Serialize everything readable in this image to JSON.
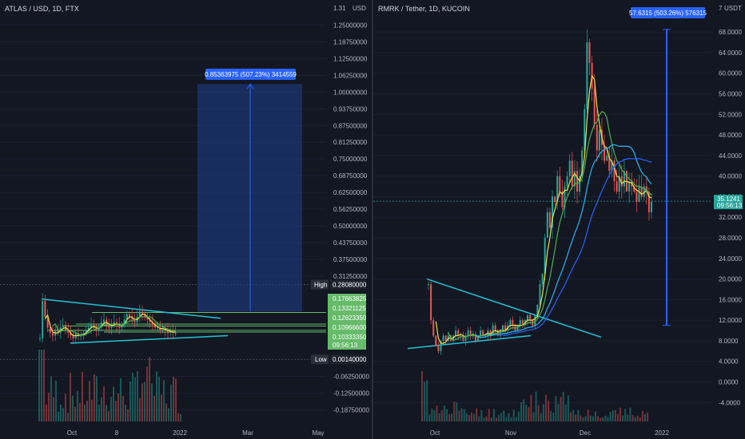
{
  "left": {
    "symbol": "ATLAS / USD, 1D, FTX",
    "currency": "USD",
    "y_ticks": [
      "1.31",
      "1.25000000",
      "1.18750000",
      "1.12500000",
      "1.06250000",
      "1.00000000",
      "0.93750000",
      "0.87500000",
      "0.81250000",
      "0.75000000",
      "0.68750000",
      "0.62500000",
      "0.56250000",
      "0.50000000",
      "0.43750000",
      "0.37500000",
      "0.31250000",
      "-0.06250000",
      "-0.12500000",
      "-0.18750000"
    ],
    "x_ticks": [
      "Oct",
      "8",
      "2022",
      "Mar",
      "May"
    ],
    "measure_label": "0.85363975 (507.23%) 3414559",
    "high_tag": "High",
    "high_value": "0.28080000",
    "low_tag": "Low",
    "low_value": "0.00140000",
    "price_labels": [
      "0.17663825",
      "0.13321125",
      "0.12623350",
      "0.10966600",
      "0.10333350"
    ],
    "countdown": "09:56:13"
  },
  "right": {
    "symbol": "RMRK / Tether, 1D, KUCOIN",
    "currency": "USDT",
    "currency_prefix": "7",
    "y_ticks": [
      "68.0000",
      "64.0000",
      "60.0000",
      "56.0000",
      "52.0000",
      "48.0000",
      "44.0000",
      "40.0000",
      "36.0000",
      "32.0000",
      "28.0000",
      "24.0000",
      "20.0000",
      "16.0000",
      "12.0000",
      "8.0000",
      "4.0000",
      "0.0000",
      "-4.0000"
    ],
    "x_ticks": [
      "Oct",
      "Nov",
      "Dec",
      "2022"
    ],
    "measure_label": "57.6315 (503.26%) 576315",
    "last_price": "35.1241",
    "countdown": "09:56:13"
  },
  "colors": {
    "background": "#131722",
    "up": "#26a69a",
    "down": "#ef5350",
    "measure_fill": "#1e3f8c",
    "measure_tag": "#2962ff",
    "trendline": "#22c3d6",
    "ma_green": "#4caf50",
    "ma_yellow": "#e8e04a",
    "ma_cyan": "#29b6f6",
    "ma_blue": "#2962ff",
    "price_green": "#66bb6a",
    "last_price_tag": "#26a69a"
  },
  "chart_data": [
    {
      "type": "candlestick",
      "title": "ATLAS / USD, 1D, FTX",
      "ylim": [
        -0.21,
        1.31
      ],
      "x_labels": [
        "Oct",
        "8",
        "2022",
        "Mar",
        "May"
      ],
      "high": 0.2808,
      "low": 0.0014,
      "measure": {
        "change": 0.85363975,
        "percent": 507.23
      },
      "levels": [
        0.17663825,
        0.13321125,
        0.1262335,
        0.109666,
        0.1033335
      ],
      "close_series": [
        0.08,
        0.22,
        0.16,
        0.12,
        0.1,
        0.09,
        0.11,
        0.1,
        0.12,
        0.13,
        0.11,
        0.1,
        0.09,
        0.08,
        0.1,
        0.09,
        0.09,
        0.1,
        0.11,
        0.12,
        0.13,
        0.12,
        0.11,
        0.12,
        0.14,
        0.15,
        0.13,
        0.12,
        0.13,
        0.14,
        0.13,
        0.12,
        0.13,
        0.15,
        0.17,
        0.16,
        0.15,
        0.14,
        0.16,
        0.18,
        0.17,
        0.16,
        0.15,
        0.14,
        0.13,
        0.12,
        0.12,
        0.11,
        0.12,
        0.11,
        0.1,
        0.11,
        0.1,
        0.1
      ]
    },
    {
      "type": "candlestick",
      "title": "RMRK / Tether, 1D, KUCOIN",
      "ylim": [
        -6,
        72
      ],
      "x_labels": [
        "Oct",
        "Nov",
        "Dec",
        "2022"
      ],
      "measure": {
        "change": 57.6315,
        "percent": 503.26
      },
      "last": 35.1241,
      "close_series": [
        19,
        12,
        9,
        7,
        6,
        8,
        9,
        8,
        9,
        8,
        9,
        10,
        9,
        9,
        8,
        9,
        10,
        9,
        9,
        8,
        9,
        10,
        9,
        9,
        10,
        9,
        11,
        10,
        9,
        10,
        11,
        10,
        11,
        12,
        11,
        10,
        11,
        12,
        11,
        12,
        13,
        12,
        11,
        13,
        15,
        19,
        21,
        28,
        33,
        30,
        36,
        35,
        40,
        37,
        34,
        38,
        40,
        43,
        38,
        41,
        37,
        40,
        45,
        53,
        66,
        62,
        57,
        50,
        45,
        49,
        46,
        43,
        44,
        41,
        43,
        39,
        37,
        40,
        38,
        41,
        37,
        39,
        38,
        37,
        35,
        38,
        36,
        38,
        37,
        33,
        35
      ]
    }
  ]
}
